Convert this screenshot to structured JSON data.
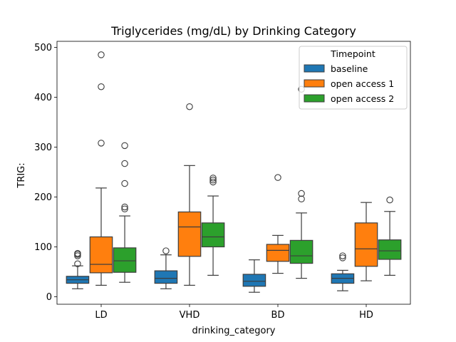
{
  "chart_data": {
    "type": "box",
    "title": "Triglycerides (mg/dL) by Drinking Category",
    "xlabel": "drinking_category",
    "ylabel": "TRIG:",
    "categories": [
      "LD",
      "VHD",
      "BD",
      "HD"
    ],
    "ylim": [
      -15,
      512
    ],
    "yticks": [
      0,
      100,
      200,
      300,
      400,
      500
    ],
    "legend": {
      "title": "Timepoint",
      "position": "top-right"
    },
    "series": [
      {
        "name": "baseline",
        "color": "#1f77b4",
        "boxes": [
          {
            "category": "LD",
            "whislo": 16,
            "q1": 27,
            "med": 34,
            "q3": 41,
            "whishi": 62,
            "fliers": [
              66,
              82,
              85,
              87
            ]
          },
          {
            "category": "VHD",
            "whislo": 16,
            "q1": 27,
            "med": 37,
            "q3": 52,
            "whishi": 84,
            "fliers": [
              92
            ]
          },
          {
            "category": "BD",
            "whislo": 9,
            "q1": 21,
            "med": 31,
            "q3": 45,
            "whishi": 74,
            "fliers": []
          },
          {
            "category": "HD",
            "whislo": 12,
            "q1": 27,
            "med": 37,
            "q3": 46,
            "whishi": 53,
            "fliers": [
              78,
              82
            ]
          }
        ]
      },
      {
        "name": "open access 1",
        "color": "#ff7f0e",
        "boxes": [
          {
            "category": "LD",
            "whislo": 23,
            "q1": 48,
            "med": 65,
            "q3": 120,
            "whishi": 218,
            "fliers": [
              308,
              421,
              485
            ]
          },
          {
            "category": "VHD",
            "whislo": 23,
            "q1": 81,
            "med": 140,
            "q3": 170,
            "whishi": 263,
            "fliers": [
              381
            ]
          },
          {
            "category": "BD",
            "whislo": 47,
            "q1": 71,
            "med": 93,
            "q3": 105,
            "whishi": 123,
            "fliers": [
              239
            ]
          },
          {
            "category": "HD",
            "whislo": 32,
            "q1": 61,
            "med": 96,
            "q3": 148,
            "whishi": 189,
            "fliers": []
          }
        ]
      },
      {
        "name": "open access 2",
        "color": "#2ca02c",
        "boxes": [
          {
            "category": "LD",
            "whislo": 29,
            "q1": 49,
            "med": 72,
            "q3": 98,
            "whishi": 162,
            "fliers": [
              176,
              180,
              227,
              267,
              303
            ]
          },
          {
            "category": "VHD",
            "whislo": 43,
            "q1": 100,
            "med": 120,
            "q3": 148,
            "whishi": 202,
            "fliers": [
              230,
              234,
              238
            ]
          },
          {
            "category": "BD",
            "whislo": 37,
            "q1": 67,
            "med": 82,
            "q3": 113,
            "whishi": 168,
            "fliers": [
              196,
              207,
              416
            ]
          },
          {
            "category": "HD",
            "whislo": 43,
            "q1": 75,
            "med": 92,
            "q3": 114,
            "whishi": 171,
            "fliers": [
              194
            ]
          }
        ]
      }
    ]
  }
}
